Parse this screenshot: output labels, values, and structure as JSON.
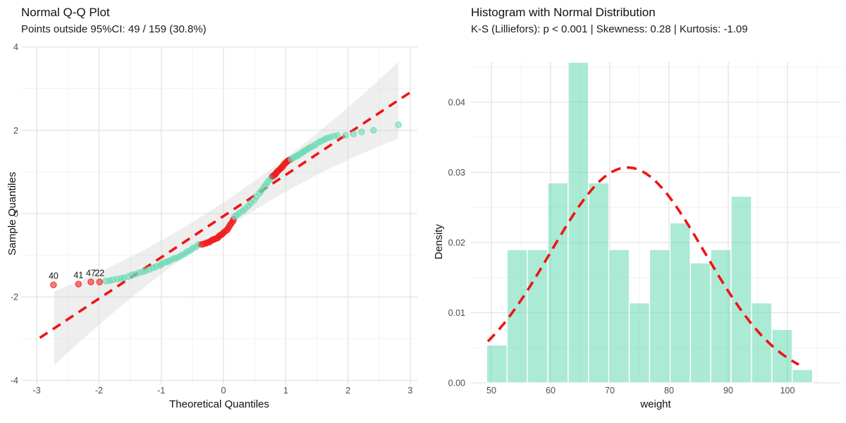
{
  "colors": {
    "teal_point": "#66D9B3",
    "bar_fill": "#66D9B3",
    "red": "#F01414",
    "band_gray": "#D9D9D9",
    "grid_major": "#E3E3E3",
    "grid_minor": "#F1F1F1",
    "tick_label": "#4D4D4D",
    "title_text": "#111111"
  },
  "chart_data": [
    {
      "type": "scatter",
      "title": "Normal Q-Q Plot",
      "subtitle": "Points outside 95%CI: 49 / 159 (30.8%)",
      "xlabel": "Theoretical Quantiles",
      "ylabel": "Sample Quantiles",
      "xlim": [
        -3.25,
        3.11
      ],
      "ylim": [
        -4.07,
        4.03
      ],
      "x_ticks": [
        -3,
        -2,
        -1,
        0,
        1,
        2,
        3
      ],
      "y_ticks": [
        -4,
        -2,
        0,
        2,
        4
      ],
      "grid": true,
      "ref_line": {
        "slope": 0.99,
        "intercept": -0.06,
        "x_start": -2.95,
        "x_end": 3.07,
        "style": "dashed"
      },
      "ci_band": {
        "x_start": -2.72,
        "x_end": 2.81,
        "half_width_center": 0.33,
        "half_width_quad": 0.075,
        "label": "95%CI"
      },
      "outlier_labels": [
        {
          "text": "40",
          "t": -2.73,
          "s": -1.71
        },
        {
          "text": "41",
          "t": -2.33,
          "s": -1.69
        },
        {
          "text": "47",
          "t": -2.13,
          "s": -1.64
        },
        {
          "text": "22",
          "t": -1.99,
          "s": -1.64
        }
      ],
      "points": [
        [
          -2.73,
          -1.71,
          1
        ],
        [
          -2.33,
          -1.69,
          1
        ],
        [
          -2.13,
          -1.64,
          1
        ],
        [
          -1.99,
          -1.64,
          1
        ],
        [
          -1.89,
          -1.62
        ],
        [
          -1.83,
          -1.61
        ],
        [
          -1.78,
          -1.59
        ],
        [
          -1.71,
          -1.57
        ],
        [
          -1.65,
          -1.56
        ],
        [
          -1.6,
          -1.54
        ],
        [
          -1.53,
          -1.51
        ],
        [
          -1.47,
          -1.47
        ],
        [
          -1.42,
          -1.46
        ],
        [
          -1.36,
          -1.42
        ],
        [
          -1.3,
          -1.4
        ],
        [
          -1.25,
          -1.37
        ],
        [
          -1.19,
          -1.34
        ],
        [
          -1.13,
          -1.3
        ],
        [
          -1.08,
          -1.27
        ],
        [
          -1.02,
          -1.24
        ],
        [
          -0.99,
          -1.2
        ],
        [
          -0.94,
          -1.17
        ],
        [
          -0.89,
          -1.15
        ],
        [
          -0.85,
          -1.12
        ],
        [
          -0.8,
          -1.08
        ],
        [
          -0.76,
          -1.07
        ],
        [
          -0.71,
          -1.03
        ],
        [
          -0.67,
          -1.0
        ],
        [
          -0.62,
          -0.96
        ],
        [
          -0.58,
          -0.91
        ],
        [
          -0.53,
          -0.88
        ],
        [
          -0.49,
          -0.83
        ],
        [
          -0.44,
          -0.8
        ],
        [
          -0.4,
          -0.74
        ],
        [
          -0.35,
          -0.74,
          1
        ],
        [
          -0.32,
          -0.73,
          1
        ],
        [
          -0.28,
          -0.71,
          1
        ],
        [
          -0.25,
          -0.69,
          1
        ],
        [
          -0.22,
          -0.68,
          1
        ],
        [
          -0.19,
          -0.64,
          1
        ],
        [
          -0.17,
          -0.63,
          1
        ],
        [
          -0.14,
          -0.61,
          1
        ],
        [
          -0.11,
          -0.59,
          1
        ],
        [
          -0.09,
          -0.58,
          1
        ],
        [
          -0.07,
          -0.54,
          1
        ],
        [
          -0.05,
          -0.52,
          1
        ],
        [
          -0.02,
          -0.49,
          1
        ],
        [
          0.0,
          -0.46,
          1
        ],
        [
          0.03,
          -0.42,
          1
        ],
        [
          0.06,
          -0.39,
          1
        ],
        [
          0.08,
          -0.34,
          1
        ],
        [
          0.1,
          -0.29,
          1
        ],
        [
          0.12,
          -0.24,
          1
        ],
        [
          0.15,
          -0.19,
          1
        ],
        [
          0.16,
          -0.14,
          1
        ],
        [
          0.18,
          -0.07
        ],
        [
          0.22,
          -0.03
        ],
        [
          0.26,
          0.02
        ],
        [
          0.31,
          0.07
        ],
        [
          0.35,
          0.12
        ],
        [
          0.4,
          0.19
        ],
        [
          0.44,
          0.25
        ],
        [
          0.49,
          0.32
        ],
        [
          0.53,
          0.41
        ],
        [
          0.58,
          0.49
        ],
        [
          0.61,
          0.56
        ],
        [
          0.65,
          0.63
        ],
        [
          0.68,
          0.69
        ],
        [
          0.71,
          0.76
        ],
        [
          0.75,
          0.83
        ],
        [
          0.78,
          0.88
        ],
        [
          0.79,
          0.9,
          1
        ],
        [
          0.82,
          0.93,
          1
        ],
        [
          0.84,
          0.96,
          1
        ],
        [
          0.86,
          1.0,
          1
        ],
        [
          0.88,
          1.03,
          1
        ],
        [
          0.91,
          1.07,
          1
        ],
        [
          0.93,
          1.1,
          1
        ],
        [
          0.95,
          1.13,
          1
        ],
        [
          0.97,
          1.18,
          1
        ],
        [
          1.0,
          1.22,
          1
        ],
        [
          1.02,
          1.25,
          1
        ],
        [
          1.04,
          1.27,
          1
        ],
        [
          1.06,
          1.29,
          1
        ],
        [
          1.09,
          1.3
        ],
        [
          1.12,
          1.34
        ],
        [
          1.16,
          1.37
        ],
        [
          1.19,
          1.39
        ],
        [
          1.22,
          1.42
        ],
        [
          1.26,
          1.46
        ],
        [
          1.29,
          1.49
        ],
        [
          1.32,
          1.52
        ],
        [
          1.36,
          1.56
        ],
        [
          1.39,
          1.59
        ],
        [
          1.44,
          1.62
        ],
        [
          1.48,
          1.66
        ],
        [
          1.53,
          1.71
        ],
        [
          1.57,
          1.74
        ],
        [
          1.62,
          1.78
        ],
        [
          1.66,
          1.81
        ],
        [
          1.71,
          1.83
        ],
        [
          1.77,
          1.86
        ],
        [
          1.83,
          1.88
        ],
        [
          1.96,
          1.88
        ],
        [
          2.09,
          1.91
        ],
        [
          2.22,
          1.96
        ],
        [
          2.41,
          2.0
        ],
        [
          2.81,
          2.13
        ]
      ]
    },
    {
      "type": "bar",
      "title": "Histogram with Normal Distribution",
      "subtitle": "K-S (Lilliefors): p < 0.001 | Skewness: 0.28 | Kurtosis: -1.09",
      "xlabel": "weight",
      "ylabel": "Density",
      "bin_start": 49.2,
      "bin_width": 3.44,
      "densities": [
        0.0054,
        0.019,
        0.019,
        0.0285,
        0.0457,
        0.0285,
        0.019,
        0.0114,
        0.019,
        0.0228,
        0.0171,
        0.019,
        0.0266,
        0.0114,
        0.0076,
        0.0019
      ],
      "x_ticks": [
        50,
        60,
        70,
        80,
        90,
        100
      ],
      "y_tick_labels": [
        "0.00",
        "0.01",
        "0.02",
        "0.03",
        "0.04"
      ],
      "y_tick_values": [
        0,
        0.01,
        0.02,
        0.03,
        0.04
      ],
      "xlim": [
        46.5,
        108.9
      ],
      "ylim": [
        0,
        0.0459
      ],
      "grid": true,
      "normal_curve": {
        "mean": 73,
        "sd": 13,
        "peak_density": 0.0307,
        "x_start": 49.4,
        "x_end": 102.3,
        "style": "dashed"
      }
    }
  ]
}
